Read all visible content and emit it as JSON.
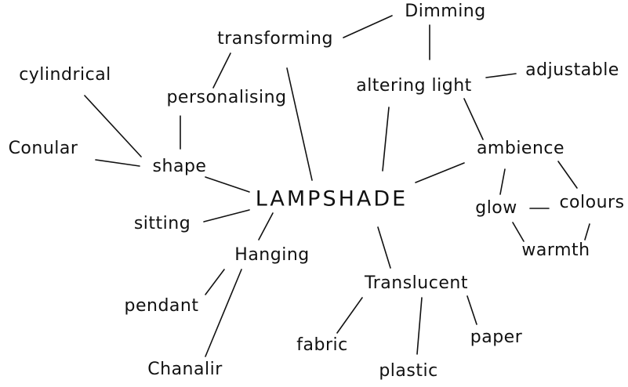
{
  "center": "LAMPSHADE",
  "nodes": {
    "dimming": "Dimming",
    "transforming": "transforming",
    "personalising": "personalising",
    "altering_light": "altering light",
    "adjustable": "adjustable",
    "cylindrical": "cylindrical",
    "conular": "Conular",
    "shape": "shape",
    "ambience": "ambience",
    "glow": "glow",
    "colours": "colours",
    "warmth": "warmth",
    "sitting": "sitting",
    "hanging": "Hanging",
    "pendant": "pendant",
    "chandalir": "Chanalir",
    "translucent": "Translucent",
    "fabric": "fabric",
    "plastic": "plastic",
    "paper": "paper"
  },
  "colors": {
    "ink": "#111111",
    "background": "#ffffff"
  }
}
